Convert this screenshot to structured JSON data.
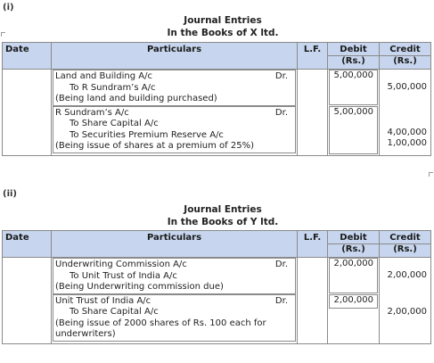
{
  "section1": {
    "label": "(i)",
    "title_line1": "Journal Entries",
    "title_line2": "In the Books of X ltd.",
    "headers": {
      "date": "Date",
      "particulars": "Particulars",
      "lf": "L.F.",
      "debit": "Debit",
      "debit_unit": "(Rs.)",
      "credit": "Credit",
      "credit_unit": "(Rs.)"
    },
    "entry1": {
      "line1": "Land and  Building A/c",
      "dr": "Dr.",
      "line2": "To R Sundram’s A/c",
      "narration": "(Being land and building purchased)",
      "debit": "5,00,000",
      "credit": "5,00,000"
    },
    "entry2": {
      "line1": "R Sundram’s A/c",
      "dr": "Dr.",
      "line2": "To Share Capital A/c",
      "line3": "To Securities Premium Reserve A/c",
      "narration": "(Being issue of shares at a premium of 25%)",
      "debit": "5,00,000",
      "credit1": "4,00,000",
      "credit2": "1,00,000"
    }
  },
  "section2": {
    "label": "(ii)",
    "title_line1": "Journal Entries",
    "title_line2": "In the Books of Y ltd.",
    "headers": {
      "date": "Date",
      "particulars": "Particulars",
      "lf": "L.F.",
      "debit": "Debit",
      "debit_unit": "(Rs.)",
      "credit": "Credit",
      "credit_unit": "(Rs.)"
    },
    "entry1": {
      "line1": "Underwriting Commission A/c",
      "dr": "Dr.",
      "line2": "To Unit Trust of India A/c",
      "narration": "(Being Underwriting commission due)",
      "debit": "2,00,000",
      "credit": "2,00,000"
    },
    "entry2": {
      "line1": "Unit Trust of India A/c",
      "dr": "Dr.",
      "line2": "To Share Capital A/c",
      "narration1": "(Being  issue  of 2000 shares of Rs. 100 each for",
      "narration2": "underwriters)",
      "debit": "2,00,000",
      "credit": "2,00,000"
    }
  }
}
